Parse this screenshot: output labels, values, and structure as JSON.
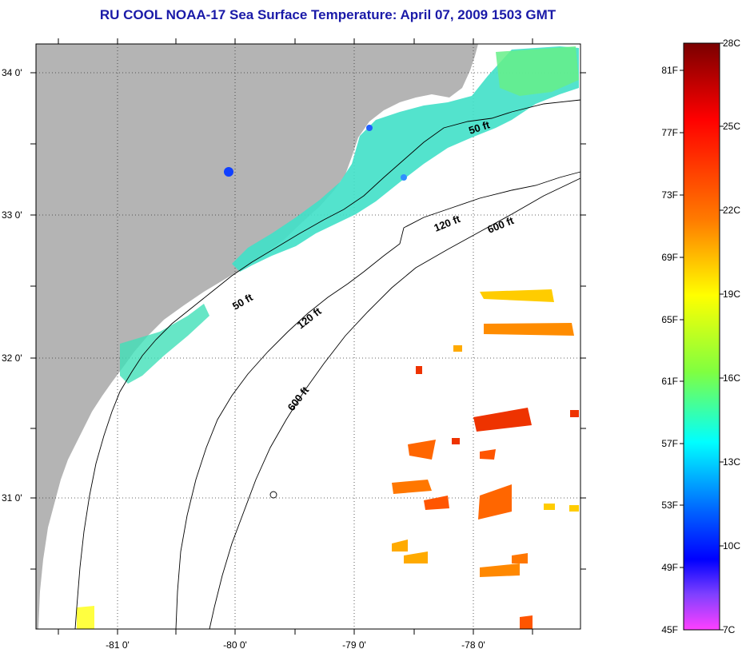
{
  "title": "RU COOL  NOAA-17  Sea Surface Temperature:  April 07, 2009 1503 GMT",
  "map": {
    "lat_labels": [
      "34 0'",
      "33 0'",
      "32 0'",
      "31 0'"
    ],
    "lon_labels": [
      "-81 0'",
      "-80 0'",
      "-79 0'",
      "-78 0'"
    ],
    "grid": "dotted",
    "land_color": "#b4b4b4",
    "ocean_color": "#ffffff",
    "contour_labels": {
      "c50_north": "50 ft",
      "c50_south": "50 ft",
      "c120_north": "120 ft",
      "c120_south": "120 ft",
      "c600_north": "600 ft",
      "c600_south": "600 ft"
    }
  },
  "colorbar": {
    "fahrenheit_labels": [
      "81F",
      "77F",
      "73F",
      "69F",
      "65F",
      "61F",
      "57F",
      "53F",
      "49F",
      "45F"
    ],
    "celsius_labels": [
      "28C",
      "25C",
      "22C",
      "19C",
      "16C",
      "13C",
      "10C",
      "7C"
    ],
    "colors_top_to_bottom": [
      "#7a0000",
      "#ff0000",
      "#ff7a00",
      "#ffff00",
      "#80ff40",
      "#00ffff",
      "#0060ff",
      "#0000ff",
      "#ff40ff"
    ]
  }
}
